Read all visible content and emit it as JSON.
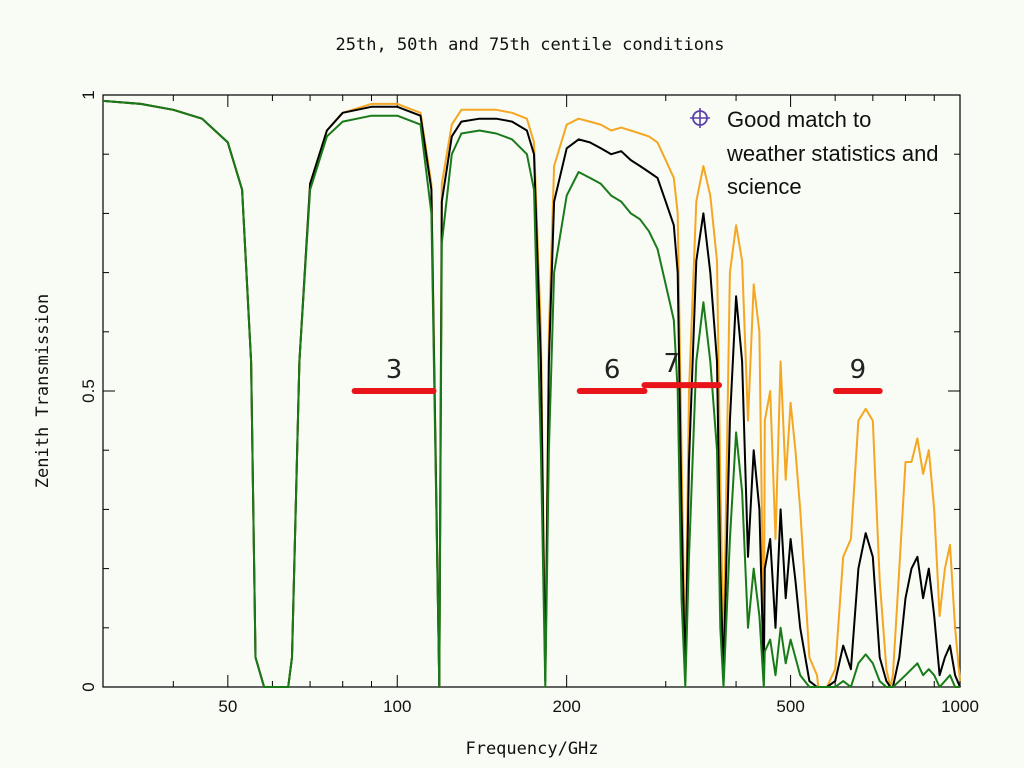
{
  "chart_data": {
    "type": "line",
    "title": "25th, 50th and 75th centile conditions",
    "xlabel": "Frequency/GHz",
    "ylabel": "Zenith Transmission",
    "x_scale": "log",
    "xlim": [
      30,
      1000
    ],
    "ylim": [
      0,
      1
    ],
    "x_ticks": [
      50,
      100,
      200,
      500,
      1000
    ],
    "x_tick_labels": [
      "50",
      "100",
      "200",
      "500",
      "1000"
    ],
    "y_ticks": [
      0,
      0.5,
      1
    ],
    "y_tick_labels": [
      "0",
      "0.5",
      "1"
    ],
    "grid": false,
    "series": [
      {
        "color": "#f5a623",
        "x": [
          30,
          35,
          40,
          45,
          50,
          53,
          55,
          56,
          58,
          60,
          62,
          64,
          65,
          67,
          70,
          75,
          80,
          90,
          100,
          110,
          115,
          118.75,
          120,
          125,
          130,
          140,
          150,
          160,
          170,
          175,
          180,
          183.3,
          186,
          190,
          200,
          210,
          220,
          230,
          240,
          250,
          260,
          270,
          280,
          290,
          300,
          310,
          315,
          320,
          325,
          330,
          340,
          350,
          360,
          370,
          375,
          380,
          390,
          400,
          410,
          420,
          430,
          440,
          448,
          450,
          460,
          470,
          480,
          490,
          500,
          510,
          520,
          540,
          557,
          560,
          580,
          600,
          620,
          640,
          660,
          680,
          700,
          720,
          740,
          752,
          760,
          780,
          800,
          820,
          840,
          860,
          880,
          900,
          920,
          940,
          960,
          980,
          1000
        ],
        "y": [
          0.99,
          0.985,
          0.975,
          0.96,
          0.92,
          0.84,
          0.55,
          0.05,
          0,
          0,
          0,
          0,
          0.05,
          0.55,
          0.85,
          0.94,
          0.97,
          0.985,
          0.985,
          0.97,
          0.85,
          0,
          0.85,
          0.95,
          0.975,
          0.975,
          0.975,
          0.97,
          0.96,
          0.92,
          0.6,
          0.02,
          0.6,
          0.88,
          0.95,
          0.96,
          0.955,
          0.95,
          0.94,
          0.945,
          0.94,
          0.935,
          0.93,
          0.92,
          0.89,
          0.86,
          0.8,
          0.4,
          0.02,
          0.5,
          0.82,
          0.88,
          0.83,
          0.72,
          0.35,
          0.05,
          0.7,
          0.78,
          0.72,
          0.45,
          0.68,
          0.6,
          0.05,
          0.45,
          0.5,
          0.25,
          0.55,
          0.35,
          0.48,
          0.4,
          0.3,
          0.05,
          0.02,
          0,
          0,
          0.03,
          0.22,
          0.25,
          0.45,
          0.47,
          0.45,
          0.18,
          0.03,
          0,
          0.02,
          0.2,
          0.38,
          0.38,
          0.42,
          0.36,
          0.4,
          0.3,
          0.12,
          0.2,
          0.24,
          0.1,
          0.01
        ]
      },
      {
        "color": "#000000",
        "x": [
          30,
          35,
          40,
          45,
          50,
          53,
          55,
          56,
          58,
          60,
          62,
          64,
          65,
          67,
          70,
          75,
          80,
          90,
          100,
          110,
          115,
          118.75,
          120,
          125,
          130,
          140,
          150,
          160,
          170,
          175,
          180,
          183.3,
          186,
          190,
          200,
          210,
          220,
          230,
          240,
          250,
          260,
          270,
          280,
          290,
          300,
          310,
          315,
          320,
          325,
          330,
          340,
          350,
          360,
          370,
          375,
          380,
          390,
          400,
          410,
          420,
          430,
          440,
          448,
          450,
          460,
          470,
          480,
          490,
          500,
          510,
          520,
          540,
          557,
          560,
          580,
          600,
          620,
          640,
          660,
          680,
          700,
          720,
          740,
          752,
          760,
          780,
          800,
          820,
          840,
          860,
          880,
          900,
          920,
          940,
          960,
          980,
          1000
        ],
        "y": [
          0.99,
          0.985,
          0.975,
          0.96,
          0.92,
          0.84,
          0.55,
          0.05,
          0,
          0,
          0,
          0,
          0.05,
          0.55,
          0.85,
          0.94,
          0.97,
          0.98,
          0.98,
          0.965,
          0.84,
          0,
          0.82,
          0.93,
          0.955,
          0.96,
          0.96,
          0.955,
          0.94,
          0.9,
          0.55,
          0.01,
          0.55,
          0.82,
          0.91,
          0.925,
          0.92,
          0.91,
          0.9,
          0.905,
          0.89,
          0.88,
          0.87,
          0.86,
          0.82,
          0.78,
          0.7,
          0.3,
          0.01,
          0.38,
          0.72,
          0.8,
          0.7,
          0.55,
          0.2,
          0.02,
          0.45,
          0.66,
          0.55,
          0.22,
          0.4,
          0.3,
          0.02,
          0.2,
          0.25,
          0.1,
          0.3,
          0.15,
          0.25,
          0.18,
          0.1,
          0.01,
          0,
          0,
          0,
          0.01,
          0.07,
          0.03,
          0.2,
          0.26,
          0.22,
          0.05,
          0.01,
          0,
          0,
          0.05,
          0.15,
          0.2,
          0.22,
          0.15,
          0.2,
          0.12,
          0.02,
          0.05,
          0.07,
          0.02,
          0
        ]
      },
      {
        "color": "#1a7a1a",
        "x": [
          30,
          35,
          40,
          45,
          50,
          53,
          55,
          56,
          58,
          60,
          62,
          64,
          65,
          67,
          70,
          75,
          80,
          90,
          100,
          110,
          115,
          118.75,
          120,
          125,
          130,
          140,
          150,
          160,
          170,
          175,
          180,
          183.3,
          186,
          190,
          200,
          210,
          220,
          230,
          240,
          250,
          260,
          270,
          280,
          290,
          300,
          310,
          315,
          320,
          325,
          330,
          340,
          350,
          360,
          370,
          375,
          380,
          390,
          400,
          410,
          420,
          430,
          440,
          448,
          450,
          460,
          470,
          480,
          490,
          500,
          510,
          520,
          540,
          557,
          560,
          580,
          600,
          620,
          640,
          660,
          680,
          700,
          720,
          740,
          752,
          760,
          780,
          800,
          820,
          840,
          860,
          880,
          900,
          920,
          940,
          960,
          980,
          1000
        ],
        "y": [
          0.99,
          0.985,
          0.975,
          0.96,
          0.92,
          0.84,
          0.55,
          0.05,
          0,
          0,
          0,
          0,
          0.05,
          0.55,
          0.84,
          0.93,
          0.955,
          0.965,
          0.965,
          0.95,
          0.8,
          0,
          0.75,
          0.9,
          0.935,
          0.94,
          0.935,
          0.925,
          0.9,
          0.84,
          0.4,
          0,
          0.4,
          0.7,
          0.83,
          0.87,
          0.86,
          0.85,
          0.83,
          0.82,
          0.8,
          0.79,
          0.77,
          0.74,
          0.68,
          0.62,
          0.5,
          0.15,
          0,
          0.22,
          0.55,
          0.65,
          0.55,
          0.4,
          0.1,
          0,
          0.25,
          0.43,
          0.33,
          0.1,
          0.2,
          0.12,
          0,
          0.06,
          0.08,
          0.02,
          0.1,
          0.04,
          0.08,
          0.05,
          0.02,
          0,
          0,
          0,
          0,
          0,
          0.01,
          0,
          0.04,
          0.055,
          0.04,
          0.01,
          0,
          0,
          0,
          0.01,
          0.02,
          0.03,
          0.04,
          0.02,
          0.03,
          0.02,
          0,
          0.01,
          0.02,
          0,
          0
        ]
      }
    ],
    "bands": [
      {
        "label": "3",
        "x_start": 84,
        "x_end": 116,
        "y": 0.5
      },
      {
        "label": "6",
        "x_start": 211,
        "x_end": 275,
        "y": 0.5
      },
      {
        "label": "7",
        "x_start": 275,
        "x_end": 373,
        "y": 0.51
      },
      {
        "label": "9",
        "x_start": 602,
        "x_end": 720,
        "y": 0.5
      }
    ],
    "annotation": {
      "icon": "crosshair-circle-icon",
      "icon_color": "#5a3fa8",
      "lines": [
        "Good match to",
        "weather statistics and",
        "science"
      ]
    }
  }
}
